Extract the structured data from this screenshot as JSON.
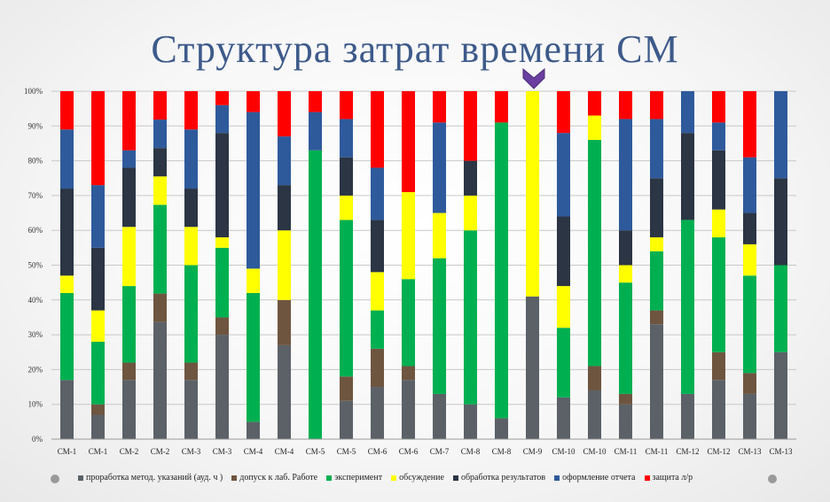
{
  "title": "Структура затрат времени СМ",
  "chart_data": {
    "type": "bar",
    "stacked": "percent",
    "categories": [
      "СМ-1",
      "СМ-1",
      "СМ-2",
      "СМ-2",
      "СМ-3",
      "СМ-3",
      "СМ-4",
      "СМ-4",
      "СМ-5",
      "СМ-5",
      "СМ-6",
      "СМ-6",
      "СМ-7",
      "СМ-8",
      "СМ-8",
      "СМ-9",
      "СМ-10",
      "СМ-10",
      "СМ-11",
      "СМ-11",
      "СМ-12",
      "СМ-12",
      "СМ-13",
      "СМ-13"
    ],
    "series": [
      {
        "name": "проработка метод. указаний (ауд. ч )",
        "color": "#5b6167",
        "values": [
          17,
          7,
          17,
          33,
          17,
          30,
          5,
          27,
          0,
          11,
          15,
          17,
          13,
          10,
          6,
          41,
          12,
          14,
          10,
          33,
          13,
          17,
          13,
          25
        ]
      },
      {
        "name": "допуск к лаб. Работе",
        "color": "#6e5540",
        "values": [
          0,
          3,
          5,
          8,
          5,
          5,
          0,
          13,
          0,
          7,
          11,
          4,
          0,
          0,
          0,
          0,
          0,
          7,
          3,
          4,
          0,
          8,
          6,
          0
        ]
      },
      {
        "name": "эксперимент",
        "color": "#00b050",
        "values": [
          25,
          18,
          22,
          25,
          28,
          20,
          37,
          0,
          83,
          45,
          11,
          25,
          39,
          50,
          85,
          0,
          20,
          65,
          32,
          17,
          50,
          33,
          28,
          25
        ]
      },
      {
        "name": "обсуждение",
        "color": "#ffff00",
        "values": [
          5,
          9,
          17,
          8,
          11,
          3,
          7,
          20,
          0,
          7,
          11,
          25,
          13,
          10,
          0,
          59,
          12,
          7,
          5,
          4,
          0,
          8,
          9,
          0
        ]
      },
      {
        "name": "обработка результатов",
        "color": "#2b3544",
        "values": [
          25,
          18,
          17,
          8,
          11,
          30,
          0,
          13,
          0,
          11,
          15,
          0,
          0,
          10,
          0,
          0,
          20,
          0,
          10,
          17,
          25,
          17,
          9,
          25
        ]
      },
      {
        "name": "оформление отчета",
        "color": "#2e5a9c",
        "values": [
          17,
          18,
          5,
          8,
          17,
          8,
          45,
          14,
          11,
          11,
          15,
          0,
          26,
          0,
          0,
          0,
          24,
          0,
          32,
          17,
          12,
          8,
          16,
          25
        ]
      },
      {
        "name": "защита л/р",
        "color": "#ff0000",
        "values": [
          11,
          27,
          17,
          8,
          11,
          4,
          6,
          13,
          6,
          8,
          22,
          29,
          9,
          20,
          9,
          0,
          12,
          7,
          8,
          8,
          0,
          9,
          19,
          0
        ]
      }
    ],
    "ylim": [
      0,
      100
    ],
    "yticks": [
      "0%",
      "10%",
      "20%",
      "30%",
      "40%",
      "50%",
      "60%",
      "70%",
      "80%",
      "90%",
      "100%"
    ],
    "grid": true,
    "legend": "bottom"
  }
}
